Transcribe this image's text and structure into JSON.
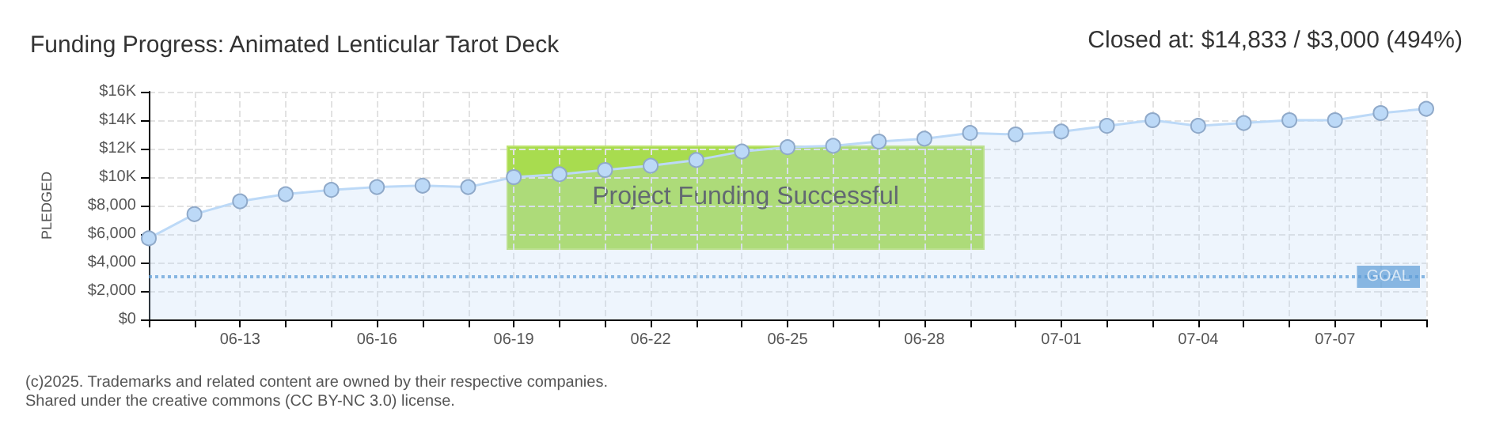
{
  "chart_data": {
    "type": "area",
    "title": "Funding Progress: Animated Lenticular Tarot Deck",
    "ylabel": "PLEDGED",
    "annotations": [
      "Closed at: $14,833 / $3,000 (494%)",
      "Project Funding Successful",
      "(c)2025. Trademarks and related content are owned by their respective companies.",
      "Shared under the creative commons (CC BY-NC 3.0) license."
    ],
    "x": [
      "--06-11",
      "--06-12",
      "--06-13",
      "--06-14",
      "--06-15",
      "--06-16",
      "--06-17",
      "--06-18",
      "--06-19",
      "--06-20",
      "--06-21",
      "--06-22",
      "--06-23",
      "--06-24",
      "--06-25",
      "--06-26",
      "--06-27",
      "--06-28",
      "--06-29",
      "--06-30",
      "--07-01",
      "--07-02",
      "--07-03",
      "--07-04",
      "--07-05",
      "--07-06",
      "--07-07",
      "--07-08",
      "--07-09"
    ],
    "series": [
      {
        "color": "#bcd9f7",
        "values": [
          5700,
          7400,
          8300,
          8800,
          9100,
          9300,
          9400,
          9300,
          10000,
          10200,
          10500,
          10800,
          11200,
          11800,
          12100,
          12200,
          12500,
          12700,
          13100,
          13000,
          13200,
          13600,
          14000,
          13600,
          13800,
          14000,
          14000,
          14500,
          14800
        ]
      }
    ],
    "xlim": [
      "--06-11",
      "--07-09"
    ],
    "xticks": [
      {
        "value": "--06-11",
        "label": null
      },
      {
        "value": "--06-12",
        "label": null
      },
      {
        "value": "--06-13",
        "label": "06-13"
      },
      {
        "value": "--06-14",
        "label": null
      },
      {
        "value": "--06-15",
        "label": null
      },
      {
        "value": "--06-16",
        "label": "06-16"
      },
      {
        "value": "--06-17",
        "label": null
      },
      {
        "value": "--06-18",
        "label": null
      },
      {
        "value": "--06-19",
        "label": "06-19"
      },
      {
        "value": "--06-20",
        "label": null
      },
      {
        "value": "--06-21",
        "label": null
      },
      {
        "value": "--06-22",
        "label": "06-22"
      },
      {
        "value": "--06-23",
        "label": null
      },
      {
        "value": "--06-24",
        "label": null
      },
      {
        "value": "--06-25",
        "label": "06-25"
      },
      {
        "value": "--06-26",
        "label": null
      },
      {
        "value": "--06-27",
        "label": null
      },
      {
        "value": "--06-28",
        "label": "06-28"
      },
      {
        "value": "--06-29",
        "label": null
      },
      {
        "value": "--06-30",
        "label": null
      },
      {
        "value": "--07-01",
        "label": "07-01"
      },
      {
        "value": "--07-02",
        "label": null
      },
      {
        "value": "--07-03",
        "label": null
      },
      {
        "value": "--07-04",
        "label": "07-04"
      },
      {
        "value": "--07-05",
        "label": null
      },
      {
        "value": "--07-06",
        "label": null
      },
      {
        "value": "--07-07",
        "label": "07-07"
      },
      {
        "value": "--07-08",
        "label": null
      },
      {
        "value": "--07-09",
        "label": null
      }
    ],
    "ylim": [
      0,
      16000
    ],
    "yticks": [
      {
        "value": 0,
        "label": "$0"
      },
      {
        "value": 2000,
        "label": "$2,000"
      },
      {
        "value": 4000,
        "label": "$4,000"
      },
      {
        "value": 6000,
        "label": "$6,000"
      },
      {
        "value": 8000,
        "label": "$8,000"
      },
      {
        "value": 10000,
        "label": "$10K"
      },
      {
        "value": 12000,
        "label": "$12K"
      },
      {
        "value": 14000,
        "label": "$14K"
      },
      {
        "value": 16000,
        "label": "$16K"
      }
    ],
    "ref_lines": [
      {
        "axis": "y",
        "value": 3000,
        "label": "GOAL",
        "color": "#5b9bd5",
        "line_style": "dotted"
      }
    ],
    "grid": true,
    "marker": "circle",
    "line_style": "solid"
  }
}
